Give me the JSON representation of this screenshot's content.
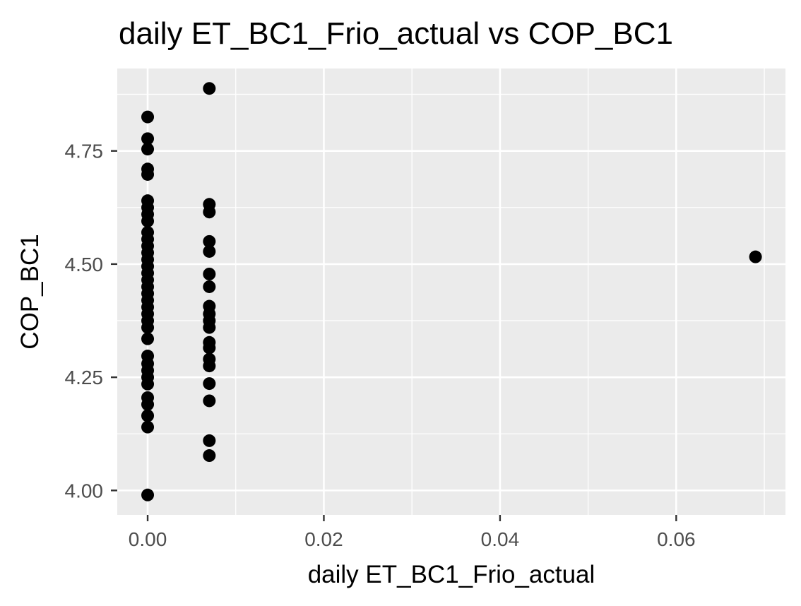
{
  "chart_data": {
    "type": "scatter",
    "title": "daily ET_BC1_Frio_actual vs COP_BC1",
    "xlabel": "daily ET_BC1_Frio_actual",
    "ylabel": "COP_BC1",
    "xlim": [
      -0.00345,
      0.0724
    ],
    "ylim": [
      3.946,
      4.932
    ],
    "x_ticks": [
      0.0,
      0.02,
      0.04,
      0.06
    ],
    "x_tick_labels": [
      "0.00",
      "0.02",
      "0.04",
      "0.06"
    ],
    "y_ticks": [
      4.0,
      4.25,
      4.5,
      4.75
    ],
    "y_tick_labels": [
      "4.00",
      "4.25",
      "4.50",
      "4.75"
    ],
    "grid": true,
    "legend": "none",
    "colors": {
      "panel": "#ebebeb",
      "grid": "#ffffff",
      "point": "#000000",
      "tick": "#333333"
    },
    "points": [
      {
        "x": 0.0,
        "y": 4.825
      },
      {
        "x": 0.0,
        "y": 4.777
      },
      {
        "x": 0.0,
        "y": 4.754
      },
      {
        "x": 0.0,
        "y": 4.71
      },
      {
        "x": 0.0,
        "y": 4.698
      },
      {
        "x": 0.0,
        "y": 4.64
      },
      {
        "x": 0.0,
        "y": 4.625
      },
      {
        "x": 0.0,
        "y": 4.61
      },
      {
        "x": 0.0,
        "y": 4.595
      },
      {
        "x": 0.0,
        "y": 4.57
      },
      {
        "x": 0.0,
        "y": 4.555
      },
      {
        "x": 0.0,
        "y": 4.54
      },
      {
        "x": 0.0,
        "y": 4.525
      },
      {
        "x": 0.0,
        "y": 4.51
      },
      {
        "x": 0.0,
        "y": 4.495
      },
      {
        "x": 0.0,
        "y": 4.48
      },
      {
        "x": 0.0,
        "y": 4.465
      },
      {
        "x": 0.0,
        "y": 4.45
      },
      {
        "x": 0.0,
        "y": 4.435
      },
      {
        "x": 0.0,
        "y": 4.42
      },
      {
        "x": 0.0,
        "y": 4.405
      },
      {
        "x": 0.0,
        "y": 4.39
      },
      {
        "x": 0.0,
        "y": 4.375
      },
      {
        "x": 0.0,
        "y": 4.36
      },
      {
        "x": 0.0,
        "y": 4.335
      },
      {
        "x": 0.0,
        "y": 4.297
      },
      {
        "x": 0.0,
        "y": 4.28
      },
      {
        "x": 0.0,
        "y": 4.265
      },
      {
        "x": 0.0,
        "y": 4.25
      },
      {
        "x": 0.0,
        "y": 4.235
      },
      {
        "x": 0.0,
        "y": 4.205
      },
      {
        "x": 0.0,
        "y": 4.19
      },
      {
        "x": 0.0,
        "y": 4.165
      },
      {
        "x": 0.0,
        "y": 4.14
      },
      {
        "x": 0.0,
        "y": 3.99
      },
      {
        "x": 0.007,
        "y": 4.888
      },
      {
        "x": 0.007,
        "y": 4.632
      },
      {
        "x": 0.007,
        "y": 4.615
      },
      {
        "x": 0.007,
        "y": 4.55
      },
      {
        "x": 0.007,
        "y": 4.528
      },
      {
        "x": 0.007,
        "y": 4.478
      },
      {
        "x": 0.007,
        "y": 4.45
      },
      {
        "x": 0.007,
        "y": 4.407
      },
      {
        "x": 0.007,
        "y": 4.39
      },
      {
        "x": 0.007,
        "y": 4.375
      },
      {
        "x": 0.007,
        "y": 4.36
      },
      {
        "x": 0.007,
        "y": 4.327
      },
      {
        "x": 0.007,
        "y": 4.315
      },
      {
        "x": 0.007,
        "y": 4.29
      },
      {
        "x": 0.007,
        "y": 4.275
      },
      {
        "x": 0.007,
        "y": 4.236
      },
      {
        "x": 0.007,
        "y": 4.198
      },
      {
        "x": 0.007,
        "y": 4.11
      },
      {
        "x": 0.007,
        "y": 4.077
      },
      {
        "x": 0.069,
        "y": 4.516
      }
    ]
  }
}
